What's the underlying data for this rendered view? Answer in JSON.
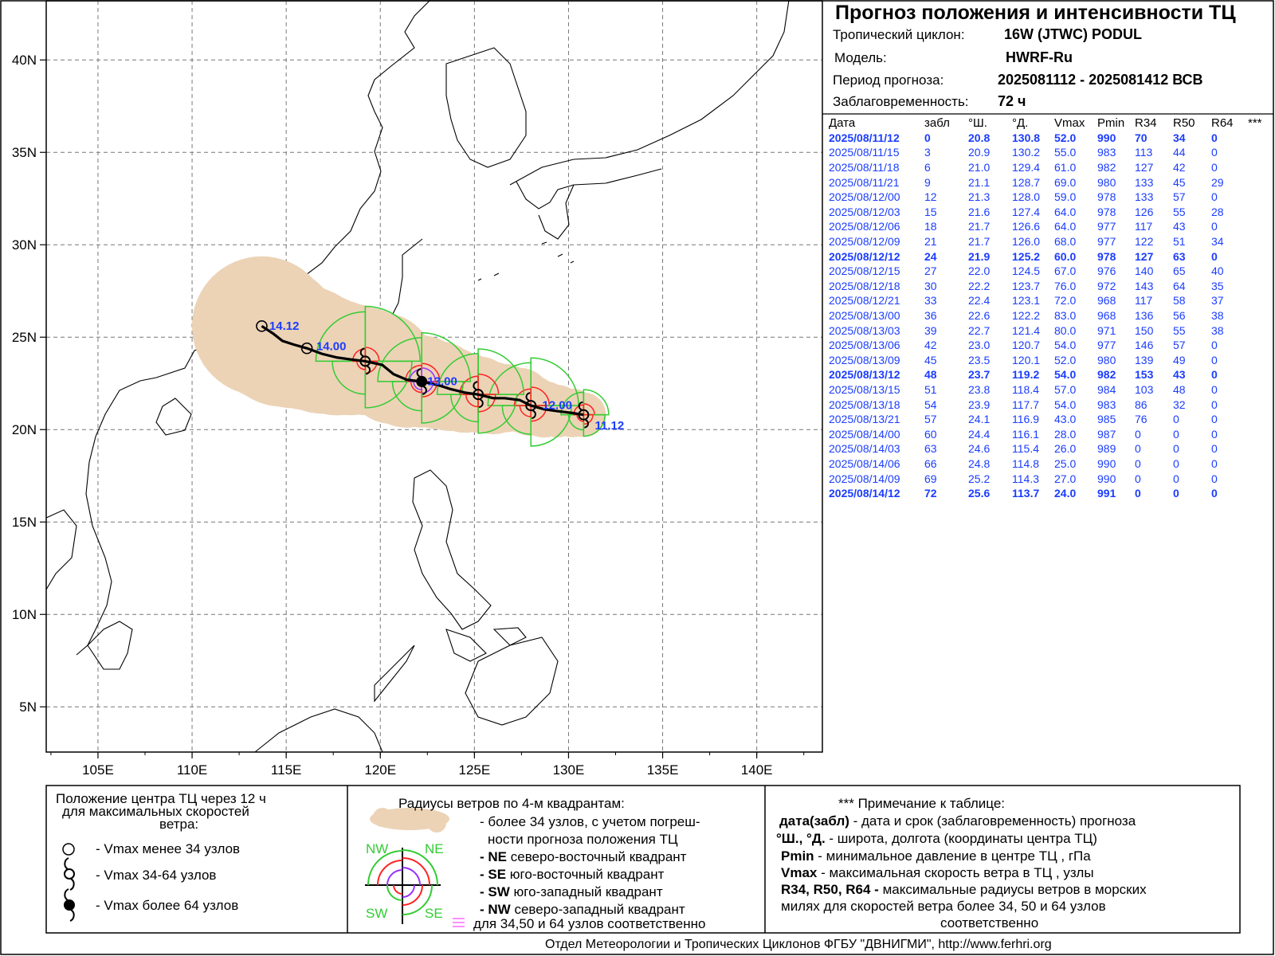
{
  "header": {
    "title": "Прогноз положения и интенсивности ТЦ",
    "cyclone_label": "Тропический циклон:",
    "cyclone_value": "16W (JTWC)  PODUL",
    "model_label": "Модель:",
    "model_value": "HWRF-Ru",
    "period_label": "Период прогноза:",
    "period_value": "2025081112 - 2025081412 ВСВ",
    "lead_label": "Заблаговременность:",
    "lead_value": "72 ч"
  },
  "table": {
    "columns": [
      "Дата",
      "забл",
      "°Ш.",
      "°Д.",
      "Vmax",
      "Pmin",
      "R34",
      "R50",
      "R64",
      "***"
    ],
    "rows": [
      {
        "date": "2025/08/11/12",
        "lead": "0",
        "lat": "20.8",
        "lon": "130.8",
        "vmax": "52.0",
        "pmin": "990",
        "r34": "70",
        "r50": "34",
        "r64": "0",
        "bold": true
      },
      {
        "date": "2025/08/11/15",
        "lead": "3",
        "lat": "20.9",
        "lon": "130.2",
        "vmax": "55.0",
        "pmin": "983",
        "r34": "113",
        "r50": "44",
        "r64": "0"
      },
      {
        "date": "2025/08/11/18",
        "lead": "6",
        "lat": "21.0",
        "lon": "129.4",
        "vmax": "61.0",
        "pmin": "982",
        "r34": "127",
        "r50": "42",
        "r64": "0"
      },
      {
        "date": "2025/08/11/21",
        "lead": "9",
        "lat": "21.1",
        "lon": "128.7",
        "vmax": "69.0",
        "pmin": "980",
        "r34": "133",
        "r50": "45",
        "r64": "29"
      },
      {
        "date": "2025/08/12/00",
        "lead": "12",
        "lat": "21.3",
        "lon": "128.0",
        "vmax": "59.0",
        "pmin": "978",
        "r34": "133",
        "r50": "57",
        "r64": "0"
      },
      {
        "date": "2025/08/12/03",
        "lead": "15",
        "lat": "21.6",
        "lon": "127.4",
        "vmax": "64.0",
        "pmin": "978",
        "r34": "126",
        "r50": "55",
        "r64": "28"
      },
      {
        "date": "2025/08/12/06",
        "lead": "18",
        "lat": "21.7",
        "lon": "126.6",
        "vmax": "64.0",
        "pmin": "977",
        "r34": "117",
        "r50": "43",
        "r64": "0"
      },
      {
        "date": "2025/08/12/09",
        "lead": "21",
        "lat": "21.7",
        "lon": "126.0",
        "vmax": "68.0",
        "pmin": "977",
        "r34": "122",
        "r50": "51",
        "r64": "34"
      },
      {
        "date": "2025/08/12/12",
        "lead": "24",
        "lat": "21.9",
        "lon": "125.2",
        "vmax": "60.0",
        "pmin": "978",
        "r34": "127",
        "r50": "63",
        "r64": "0",
        "bold": true
      },
      {
        "date": "2025/08/12/15",
        "lead": "27",
        "lat": "22.0",
        "lon": "124.5",
        "vmax": "67.0",
        "pmin": "976",
        "r34": "140",
        "r50": "65",
        "r64": "40"
      },
      {
        "date": "2025/08/12/18",
        "lead": "30",
        "lat": "22.2",
        "lon": "123.7",
        "vmax": "76.0",
        "pmin": "972",
        "r34": "143",
        "r50": "64",
        "r64": "35"
      },
      {
        "date": "2025/08/12/21",
        "lead": "33",
        "lat": "22.4",
        "lon": "123.1",
        "vmax": "72.0",
        "pmin": "968",
        "r34": "117",
        "r50": "58",
        "r64": "37"
      },
      {
        "date": "2025/08/13/00",
        "lead": "36",
        "lat": "22.6",
        "lon": "122.2",
        "vmax": "83.0",
        "pmin": "968",
        "r34": "136",
        "r50": "56",
        "r64": "38"
      },
      {
        "date": "2025/08/13/03",
        "lead": "39",
        "lat": "22.7",
        "lon": "121.4",
        "vmax": "80.0",
        "pmin": "971",
        "r34": "150",
        "r50": "55",
        "r64": "38"
      },
      {
        "date": "2025/08/13/06",
        "lead": "42",
        "lat": "23.0",
        "lon": "120.7",
        "vmax": "54.0",
        "pmin": "977",
        "r34": "146",
        "r50": "57",
        "r64": "0"
      },
      {
        "date": "2025/08/13/09",
        "lead": "45",
        "lat": "23.5",
        "lon": "120.1",
        "vmax": "52.0",
        "pmin": "980",
        "r34": "139",
        "r50": "49",
        "r64": "0"
      },
      {
        "date": "2025/08/13/12",
        "lead": "48",
        "lat": "23.7",
        "lon": "119.2",
        "vmax": "54.0",
        "pmin": "982",
        "r34": "153",
        "r50": "43",
        "r64": "0",
        "bold": true
      },
      {
        "date": "2025/08/13/15",
        "lead": "51",
        "lat": "23.8",
        "lon": "118.4",
        "vmax": "57.0",
        "pmin": "984",
        "r34": "103",
        "r50": "48",
        "r64": "0"
      },
      {
        "date": "2025/08/13/18",
        "lead": "54",
        "lat": "23.9",
        "lon": "117.7",
        "vmax": "54.0",
        "pmin": "983",
        "r34": "86",
        "r50": "32",
        "r64": "0"
      },
      {
        "date": "2025/08/13/21",
        "lead": "57",
        "lat": "24.1",
        "lon": "116.9",
        "vmax": "43.0",
        "pmin": "985",
        "r34": "76",
        "r50": "0",
        "r64": "0"
      },
      {
        "date": "2025/08/14/00",
        "lead": "60",
        "lat": "24.4",
        "lon": "116.1",
        "vmax": "28.0",
        "pmin": "987",
        "r34": "0",
        "r50": "0",
        "r64": "0"
      },
      {
        "date": "2025/08/14/03",
        "lead": "63",
        "lat": "24.6",
        "lon": "115.4",
        "vmax": "26.0",
        "pmin": "989",
        "r34": "0",
        "r50": "0",
        "r64": "0"
      },
      {
        "date": "2025/08/14/06",
        "lead": "66",
        "lat": "24.8",
        "lon": "114.8",
        "vmax": "25.0",
        "pmin": "990",
        "r34": "0",
        "r50": "0",
        "r64": "0"
      },
      {
        "date": "2025/08/14/09",
        "lead": "69",
        "lat": "25.2",
        "lon": "114.3",
        "vmax": "27.0",
        "pmin": "990",
        "r34": "0",
        "r50": "0",
        "r64": "0"
      },
      {
        "date": "2025/08/14/12",
        "lead": "72",
        "lat": "25.6",
        "lon": "113.7",
        "vmax": "24.0",
        "pmin": "991",
        "r34": "0",
        "r50": "0",
        "r64": "0",
        "bold": true
      }
    ]
  },
  "map": {
    "lat_labels": [
      "40N",
      "35N",
      "30N",
      "25N",
      "20N",
      "15N",
      "10N",
      "5N"
    ],
    "lon_labels": [
      "105E",
      "110E",
      "115E",
      "120E",
      "125E",
      "130E",
      "135E",
      "140E"
    ],
    "track_labels": [
      {
        "text": "14.12",
        "lon": 114.1,
        "lat": 25.4
      },
      {
        "text": "14.00",
        "lon": 116.6,
        "lat": 24.3
      },
      {
        "text": "13.00",
        "lon": 122.5,
        "lat": 22.4
      },
      {
        "text": "12.00",
        "lon": 128.6,
        "lat": 21.1
      },
      {
        "text": "11.12",
        "lon": 131.4,
        "lat": 20.0
      }
    ],
    "colors": {
      "uncertainty": "#ecd3b6",
      "r34": "#33cc33",
      "r50": "#ff2222",
      "r64": "#9933ff",
      "label": "#1a3cff"
    }
  },
  "legend_left": {
    "title_line1": "Положение центра ТЦ через 12 ч",
    "title_line2": "для максимальных скоростей",
    "title_line3": "ветра:",
    "item1": "- Vmax  менее 34 узлов",
    "item2": "- Vmax  34-64 узлов",
    "item3": "- Vmax  более 64 узлов"
  },
  "legend_mid": {
    "title": "Радиусы ветров по 4-м квадрантам:",
    "line1": "- более 34 узлов, с учетом погреш-",
    "line2": "ности прогноза положения ТЦ",
    "ne_key": "- NE",
    "ne_text": "северо-восточный квадрант",
    "se_key": "- SE",
    "se_text": "юго-восточный квадрант",
    "sw_key": "- SW",
    "sw_text": "юго-западный квадрант",
    "nw_key": "- NW",
    "nw_text": "северо-западный квадрант",
    "last": "для 34,50 и 64 узлов соответственно",
    "q_nw": "NW",
    "q_ne": "NE",
    "q_sw": "SW",
    "q_se": "SE"
  },
  "legend_right": {
    "title": "*** Примечание к таблице:",
    "l1_key": "дата(забл)",
    "l1_text": " - дата и срок (заблаговременность) прогноза",
    "l2_key": "°Ш., °Д.",
    "l2_text": " - широта, долгота   (координаты центра ТЦ)",
    "l3_key": "Pmin",
    "l3_text": "  - минимальное давление в центре ТЦ , гПа",
    "l4_key": "Vmax",
    "l4_text": "  -  максимальная скорость ветра в ТЦ , узлы",
    "l5_key": "R34, R50, R64 -",
    "l5_text": " максимальные радиусы ветров в морских",
    "l6": "милях для скоростей ветра более 34, 50 и 64 узлов",
    "l7": "соответственно"
  },
  "footer": {
    "text": "Отдел Метеорологии и Тропических Циклонов ФГБУ \"ДВНИГМИ\",  http://www.ferhri.org"
  }
}
